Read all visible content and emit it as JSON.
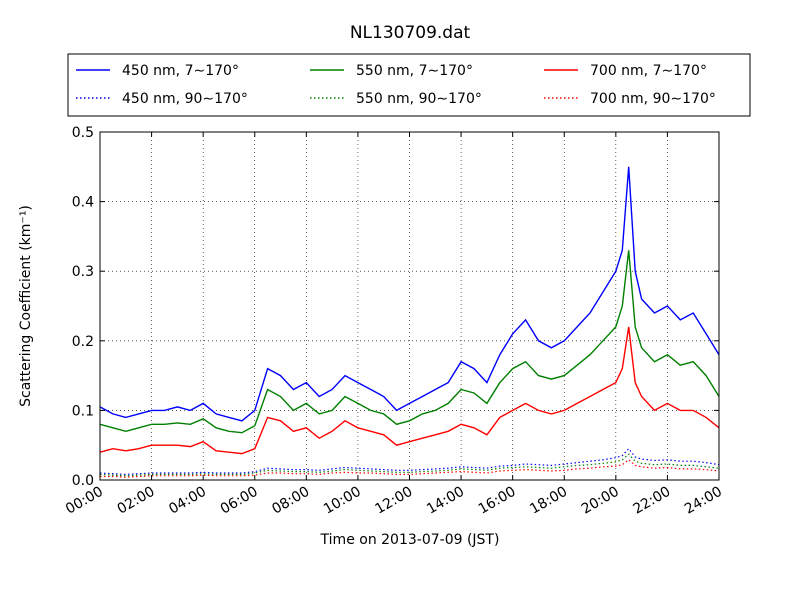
{
  "chart_data": {
    "type": "line",
    "title": "NL130709.dat",
    "xlabel": "Time on 2013-07-09 (JST)",
    "ylabel": "Scattering Coefficient (km⁻¹)",
    "xlim": [
      "00:00",
      "24:00"
    ],
    "ylim": [
      0,
      0.5
    ],
    "x_ticks": [
      "00:00",
      "02:00",
      "04:00",
      "06:00",
      "08:00",
      "10:00",
      "12:00",
      "14:00",
      "16:00",
      "18:00",
      "20:00",
      "22:00",
      "24:00"
    ],
    "y_ticks": [
      "0.0",
      "0.1",
      "0.2",
      "0.3",
      "0.4",
      "0.5"
    ],
    "grid": true,
    "legend_position": "top",
    "x": [
      "00:00",
      "00:30",
      "01:00",
      "01:30",
      "02:00",
      "02:30",
      "03:00",
      "03:30",
      "04:00",
      "04:30",
      "05:00",
      "05:30",
      "06:00",
      "06:30",
      "07:00",
      "07:30",
      "08:00",
      "08:30",
      "09:00",
      "09:30",
      "10:00",
      "10:30",
      "11:00",
      "11:30",
      "12:00",
      "12:30",
      "13:00",
      "13:30",
      "14:00",
      "14:30",
      "15:00",
      "15:30",
      "16:00",
      "16:30",
      "17:00",
      "17:30",
      "18:00",
      "18:30",
      "19:00",
      "19:30",
      "20:00",
      "20:15",
      "20:30",
      "20:45",
      "21:00",
      "21:30",
      "22:00",
      "22:30",
      "23:00",
      "23:30",
      "24:00"
    ],
    "series": [
      {
        "name": "450 nm, 7∼170°",
        "style": "solid",
        "color": "#0000ff",
        "values": [
          0.105,
          0.095,
          0.09,
          0.095,
          0.1,
          0.1,
          0.105,
          0.1,
          0.11,
          0.095,
          0.09,
          0.085,
          0.1,
          0.16,
          0.15,
          0.13,
          0.14,
          0.12,
          0.13,
          0.15,
          0.14,
          0.13,
          0.12,
          0.1,
          0.11,
          0.12,
          0.13,
          0.14,
          0.17,
          0.16,
          0.14,
          0.18,
          0.21,
          0.23,
          0.2,
          0.19,
          0.2,
          0.22,
          0.24,
          0.27,
          0.3,
          0.33,
          0.45,
          0.3,
          0.26,
          0.24,
          0.25,
          0.23,
          0.24,
          0.21,
          0.18
        ]
      },
      {
        "name": "450 nm, 90∼170°",
        "style": "dotted",
        "color": "#0000ff",
        "values": [
          0.01,
          0.009,
          0.008,
          0.009,
          0.01,
          0.01,
          0.01,
          0.01,
          0.011,
          0.01,
          0.01,
          0.01,
          0.012,
          0.017,
          0.016,
          0.015,
          0.015,
          0.014,
          0.016,
          0.018,
          0.017,
          0.016,
          0.015,
          0.014,
          0.014,
          0.015,
          0.016,
          0.017,
          0.019,
          0.018,
          0.017,
          0.02,
          0.021,
          0.023,
          0.022,
          0.021,
          0.023,
          0.025,
          0.027,
          0.029,
          0.032,
          0.035,
          0.045,
          0.033,
          0.03,
          0.028,
          0.029,
          0.027,
          0.027,
          0.025,
          0.022
        ]
      },
      {
        "name": "550 nm, 7∼170°",
        "style": "solid",
        "color": "#008000",
        "values": [
          0.08,
          0.075,
          0.07,
          0.075,
          0.08,
          0.08,
          0.082,
          0.08,
          0.088,
          0.075,
          0.07,
          0.068,
          0.078,
          0.13,
          0.12,
          0.1,
          0.11,
          0.095,
          0.1,
          0.12,
          0.11,
          0.1,
          0.095,
          0.08,
          0.085,
          0.095,
          0.1,
          0.11,
          0.13,
          0.125,
          0.11,
          0.14,
          0.16,
          0.17,
          0.15,
          0.145,
          0.15,
          0.165,
          0.18,
          0.2,
          0.22,
          0.25,
          0.33,
          0.22,
          0.19,
          0.17,
          0.18,
          0.165,
          0.17,
          0.15,
          0.12
        ]
      },
      {
        "name": "550 nm, 90∼170°",
        "style": "dotted",
        "color": "#008000",
        "values": [
          0.008,
          0.007,
          0.006,
          0.007,
          0.008,
          0.008,
          0.008,
          0.008,
          0.009,
          0.008,
          0.008,
          0.008,
          0.01,
          0.014,
          0.013,
          0.012,
          0.012,
          0.011,
          0.013,
          0.015,
          0.014,
          0.013,
          0.012,
          0.011,
          0.011,
          0.012,
          0.013,
          0.014,
          0.016,
          0.015,
          0.014,
          0.017,
          0.018,
          0.019,
          0.018,
          0.017,
          0.019,
          0.021,
          0.022,
          0.024,
          0.026,
          0.029,
          0.037,
          0.027,
          0.024,
          0.022,
          0.023,
          0.021,
          0.021,
          0.019,
          0.017
        ]
      },
      {
        "name": "700 nm, 7∼170°",
        "style": "solid",
        "color": "#ff0000",
        "values": [
          0.04,
          0.045,
          0.042,
          0.045,
          0.05,
          0.05,
          0.05,
          0.048,
          0.055,
          0.042,
          0.04,
          0.038,
          0.045,
          0.09,
          0.085,
          0.07,
          0.075,
          0.06,
          0.07,
          0.085,
          0.075,
          0.07,
          0.065,
          0.05,
          0.055,
          0.06,
          0.065,
          0.07,
          0.08,
          0.075,
          0.065,
          0.09,
          0.1,
          0.11,
          0.1,
          0.095,
          0.1,
          0.11,
          0.12,
          0.13,
          0.14,
          0.16,
          0.22,
          0.14,
          0.12,
          0.1,
          0.11,
          0.1,
          0.1,
          0.09,
          0.075
        ]
      },
      {
        "name": "700 nm, 90∼170°",
        "style": "dotted",
        "color": "#ff0000",
        "values": [
          0.005,
          0.005,
          0.004,
          0.005,
          0.006,
          0.006,
          0.006,
          0.006,
          0.007,
          0.006,
          0.006,
          0.006,
          0.007,
          0.01,
          0.01,
          0.009,
          0.009,
          0.008,
          0.01,
          0.011,
          0.01,
          0.01,
          0.009,
          0.008,
          0.008,
          0.009,
          0.01,
          0.011,
          0.012,
          0.011,
          0.01,
          0.013,
          0.014,
          0.015,
          0.014,
          0.013,
          0.014,
          0.016,
          0.017,
          0.019,
          0.02,
          0.022,
          0.029,
          0.021,
          0.019,
          0.017,
          0.018,
          0.016,
          0.016,
          0.015,
          0.013
        ]
      }
    ]
  }
}
